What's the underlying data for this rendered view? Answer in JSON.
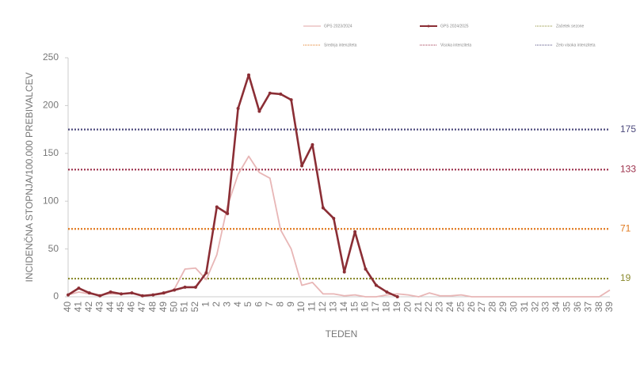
{
  "chart_data": {
    "type": "line",
    "x_label": "TEDEN",
    "y_label": "INCIDENČNA STOPNJA/100.000 PREBIVALCEV",
    "categories": [
      "40",
      "41",
      "42",
      "43",
      "44",
      "45",
      "46",
      "47",
      "48",
      "49",
      "50",
      "51",
      "52",
      "1",
      "2",
      "3",
      "4",
      "5",
      "6",
      "7",
      "8",
      "9",
      "10",
      "11",
      "12",
      "13",
      "14",
      "15",
      "16",
      "17",
      "18",
      "19",
      "20",
      "21",
      "22",
      "23",
      "24",
      "25",
      "26",
      "27",
      "28",
      "29",
      "30",
      "31",
      "32",
      "33",
      "34",
      "35",
      "36",
      "37",
      "38",
      "39"
    ],
    "series": [
      {
        "name": "GPS 2023/2024",
        "color": "#e8b6b6",
        "markers": false,
        "values": [
          2,
          5,
          3,
          2,
          3,
          3,
          4,
          1,
          2,
          3,
          8,
          29,
          30,
          18,
          44,
          95,
          128,
          147,
          130,
          124,
          70,
          50,
          12,
          15,
          3,
          3,
          1,
          2,
          0,
          0,
          2,
          3,
          2,
          0,
          4,
          1,
          1,
          2,
          0,
          0,
          0,
          0,
          0,
          0,
          0,
          0,
          0,
          0,
          0,
          0,
          0,
          7
        ]
      },
      {
        "name": "GPS 2024/2025",
        "color": "#8b2e35",
        "markers": true,
        "values": [
          2,
          9,
          4,
          1,
          5,
          3,
          4,
          1,
          2,
          4,
          7,
          10,
          10,
          25,
          94,
          87,
          197,
          232,
          194,
          213,
          212,
          206,
          137,
          159,
          93,
          82,
          26,
          68,
          29,
          12,
          5,
          0,
          null,
          null,
          null,
          null,
          null,
          null,
          null,
          null,
          null,
          null,
          null,
          null,
          null,
          null,
          null,
          null,
          null,
          null,
          null,
          null
        ]
      }
    ],
    "thresholds": [
      {
        "name": "Začetek sezone",
        "value": 19,
        "color": "#8a8a2e"
      },
      {
        "name": "Srednja intenziteta",
        "value": 71,
        "color": "#e07a1f"
      },
      {
        "name": "Visoka intenziteta",
        "value": 133,
        "color": "#9c2f4a"
      },
      {
        "name": "Zelo visoka intenziteta",
        "value": 175,
        "color": "#4d4a7d"
      }
    ],
    "ylim": [
      0,
      250
    ],
    "yticks": [
      0,
      50,
      100,
      150,
      200,
      250
    ],
    "grid": false
  }
}
